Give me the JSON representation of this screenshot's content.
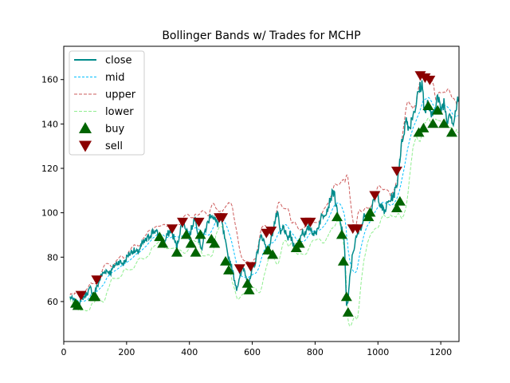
{
  "chart_data": {
    "type": "line",
    "title": "Bollinger Bands w/ Trades for MCHP",
    "xlabel": "",
    "ylabel": "",
    "xlim": [
      0,
      1258
    ],
    "ylim": [
      42,
      175
    ],
    "x_ticks": [
      0,
      200,
      400,
      600,
      800,
      1000,
      1200
    ],
    "y_ticks": [
      60,
      80,
      100,
      120,
      140,
      160
    ],
    "grid": false,
    "legend_position": "upper-left",
    "colors": {
      "close": "#008b8b",
      "mid": "#00bfff",
      "upper": "#cd5c5c",
      "lower": "#90ee90",
      "buy": "#006400",
      "sell": "#8b0000"
    },
    "close_points": [
      [
        20,
        62
      ],
      [
        35,
        60
      ],
      [
        45,
        58
      ],
      [
        55,
        61
      ],
      [
        70,
        63
      ],
      [
        85,
        66
      ],
      [
        95,
        63
      ],
      [
        110,
        68
      ],
      [
        120,
        72
      ],
      [
        135,
        74
      ],
      [
        150,
        73
      ],
      [
        160,
        76
      ],
      [
        175,
        78
      ],
      [
        190,
        77
      ],
      [
        205,
        81
      ],
      [
        220,
        83
      ],
      [
        235,
        82
      ],
      [
        250,
        86
      ],
      [
        265,
        88
      ],
      [
        280,
        91
      ],
      [
        290,
        92
      ],
      [
        300,
        90
      ],
      [
        310,
        88
      ],
      [
        320,
        86
      ],
      [
        330,
        90
      ],
      [
        340,
        92
      ],
      [
        350,
        89
      ],
      [
        360,
        84
      ],
      [
        370,
        92
      ],
      [
        380,
        96
      ],
      [
        390,
        93
      ],
      [
        400,
        89
      ],
      [
        410,
        95
      ],
      [
        420,
        98
      ],
      [
        430,
        88
      ],
      [
        440,
        84
      ],
      [
        450,
        92
      ],
      [
        460,
        96
      ],
      [
        470,
        100
      ],
      [
        480,
        97
      ],
      [
        490,
        95
      ],
      [
        500,
        98
      ],
      [
        510,
        90
      ],
      [
        520,
        82
      ],
      [
        530,
        78
      ],
      [
        540,
        72
      ],
      [
        550,
        66
      ],
      [
        560,
        70
      ],
      [
        570,
        76
      ],
      [
        580,
        72
      ],
      [
        590,
        68
      ],
      [
        600,
        74
      ],
      [
        610,
        78
      ],
      [
        620,
        85
      ],
      [
        630,
        90
      ],
      [
        640,
        86
      ],
      [
        650,
        82
      ],
      [
        660,
        88
      ],
      [
        670,
        95
      ],
      [
        680,
        100
      ],
      [
        690,
        90
      ],
      [
        700,
        94
      ],
      [
        710,
        88
      ],
      [
        720,
        90
      ],
      [
        730,
        86
      ],
      [
        740,
        84
      ],
      [
        750,
        88
      ],
      [
        760,
        92
      ],
      [
        770,
        90
      ],
      [
        780,
        94
      ],
      [
        790,
        92
      ],
      [
        800,
        90
      ],
      [
        810,
        94
      ],
      [
        820,
        98
      ],
      [
        830,
        100
      ],
      [
        840,
        102
      ],
      [
        850,
        107
      ],
      [
        860,
        110
      ],
      [
        870,
        100
      ],
      [
        880,
        95
      ],
      [
        890,
        90
      ],
      [
        895,
        80
      ],
      [
        900,
        58
      ],
      [
        905,
        60
      ],
      [
        910,
        70
      ],
      [
        920,
        82
      ],
      [
        930,
        88
      ],
      [
        940,
        92
      ],
      [
        950,
        95
      ],
      [
        960,
        100
      ],
      [
        970,
        98
      ],
      [
        980,
        102
      ],
      [
        990,
        106
      ],
      [
        1000,
        108
      ],
      [
        1010,
        103
      ],
      [
        1020,
        100
      ],
      [
        1030,
        104
      ],
      [
        1040,
        106
      ],
      [
        1050,
        108
      ],
      [
        1060,
        112
      ],
      [
        1065,
        118
      ],
      [
        1070,
        125
      ],
      [
        1080,
        135
      ],
      [
        1090,
        142
      ],
      [
        1100,
        138
      ],
      [
        1110,
        144
      ],
      [
        1120,
        148
      ],
      [
        1130,
        155
      ],
      [
        1140,
        158
      ],
      [
        1150,
        145
      ],
      [
        1160,
        150
      ],
      [
        1170,
        142
      ],
      [
        1180,
        148
      ],
      [
        1190,
        152
      ],
      [
        1200,
        146
      ],
      [
        1210,
        150
      ],
      [
        1220,
        142
      ],
      [
        1230,
        146
      ],
      [
        1240,
        140
      ],
      [
        1250,
        148
      ],
      [
        1255,
        150
      ]
    ],
    "buy_points": [
      [
        38,
        59
      ],
      [
        45,
        58
      ],
      [
        95,
        62
      ],
      [
        100,
        62
      ],
      [
        305,
        89
      ],
      [
        315,
        86
      ],
      [
        360,
        82
      ],
      [
        390,
        90
      ],
      [
        405,
        86
      ],
      [
        420,
        82
      ],
      [
        435,
        90
      ],
      [
        470,
        88
      ],
      [
        480,
        86
      ],
      [
        515,
        78
      ],
      [
        525,
        74
      ],
      [
        585,
        68
      ],
      [
        590,
        65
      ],
      [
        650,
        83
      ],
      [
        665,
        81
      ],
      [
        740,
        84
      ],
      [
        750,
        86
      ],
      [
        870,
        98
      ],
      [
        885,
        90
      ],
      [
        890,
        78
      ],
      [
        900,
        62
      ],
      [
        905,
        55
      ],
      [
        970,
        98
      ],
      [
        975,
        100
      ],
      [
        1060,
        102
      ],
      [
        1070,
        105
      ],
      [
        1130,
        136
      ],
      [
        1145,
        138
      ],
      [
        1160,
        148
      ],
      [
        1175,
        140
      ],
      [
        1190,
        146
      ],
      [
        1210,
        140
      ],
      [
        1235,
        136
      ]
    ],
    "sell_points": [
      [
        55,
        63
      ],
      [
        105,
        70
      ],
      [
        345,
        93
      ],
      [
        378,
        96
      ],
      [
        430,
        96
      ],
      [
        495,
        98
      ],
      [
        505,
        98
      ],
      [
        560,
        75
      ],
      [
        595,
        76
      ],
      [
        645,
        91
      ],
      [
        660,
        92
      ],
      [
        770,
        96
      ],
      [
        785,
        96
      ],
      [
        920,
        93
      ],
      [
        935,
        93
      ],
      [
        990,
        108
      ],
      [
        1060,
        119
      ],
      [
        1135,
        162
      ],
      [
        1150,
        161
      ],
      [
        1165,
        160
      ]
    ],
    "legend": [
      "close",
      "mid",
      "upper",
      "lower",
      "buy",
      "sell"
    ]
  }
}
